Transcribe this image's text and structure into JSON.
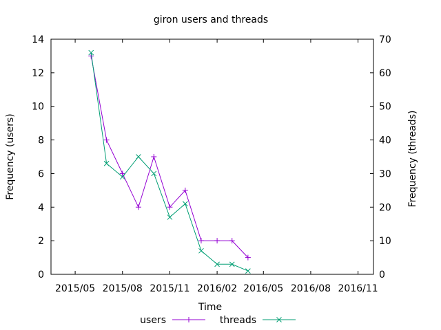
{
  "chart_data": {
    "type": "line",
    "title": "giron users and threads",
    "xlabel": "Time",
    "ylabel": "Frequency (users)",
    "y2label": "Frequency (threads)",
    "x_ticks": [
      "2015/05",
      "2015/08",
      "2015/11",
      "2016/02",
      "2016/05",
      "2016/08",
      "2016/11"
    ],
    "y_ticks": [
      "0",
      "2",
      "4",
      "6",
      "8",
      "10",
      "12",
      "14"
    ],
    "y2_ticks": [
      "0",
      "10",
      "20",
      "30",
      "40",
      "50",
      "60",
      "70"
    ],
    "ylim": [
      0,
      14
    ],
    "y2lim": [
      0,
      70
    ],
    "xlim": [
      "2015-03-15",
      "2016-12-01"
    ],
    "grid": false,
    "legend_position": "bottom",
    "colors": {
      "users": "#9400d3",
      "threads": "#009e73"
    },
    "x": [
      "2015-06-01",
      "2015-07-01",
      "2015-08-01",
      "2015-09-01",
      "2015-10-01",
      "2015-11-01",
      "2015-12-01",
      "2016-01-01",
      "2016-02-01",
      "2016-03-01",
      "2016-04-01"
    ],
    "series": [
      {
        "name": "users",
        "axis": "left",
        "values": [
          13,
          8,
          6,
          4,
          7,
          4,
          5,
          2,
          2,
          2,
          1
        ]
      },
      {
        "name": "threads",
        "axis": "right",
        "values": [
          66,
          33,
          29,
          35,
          30,
          17,
          21,
          7,
          3,
          3,
          1
        ]
      }
    ]
  }
}
